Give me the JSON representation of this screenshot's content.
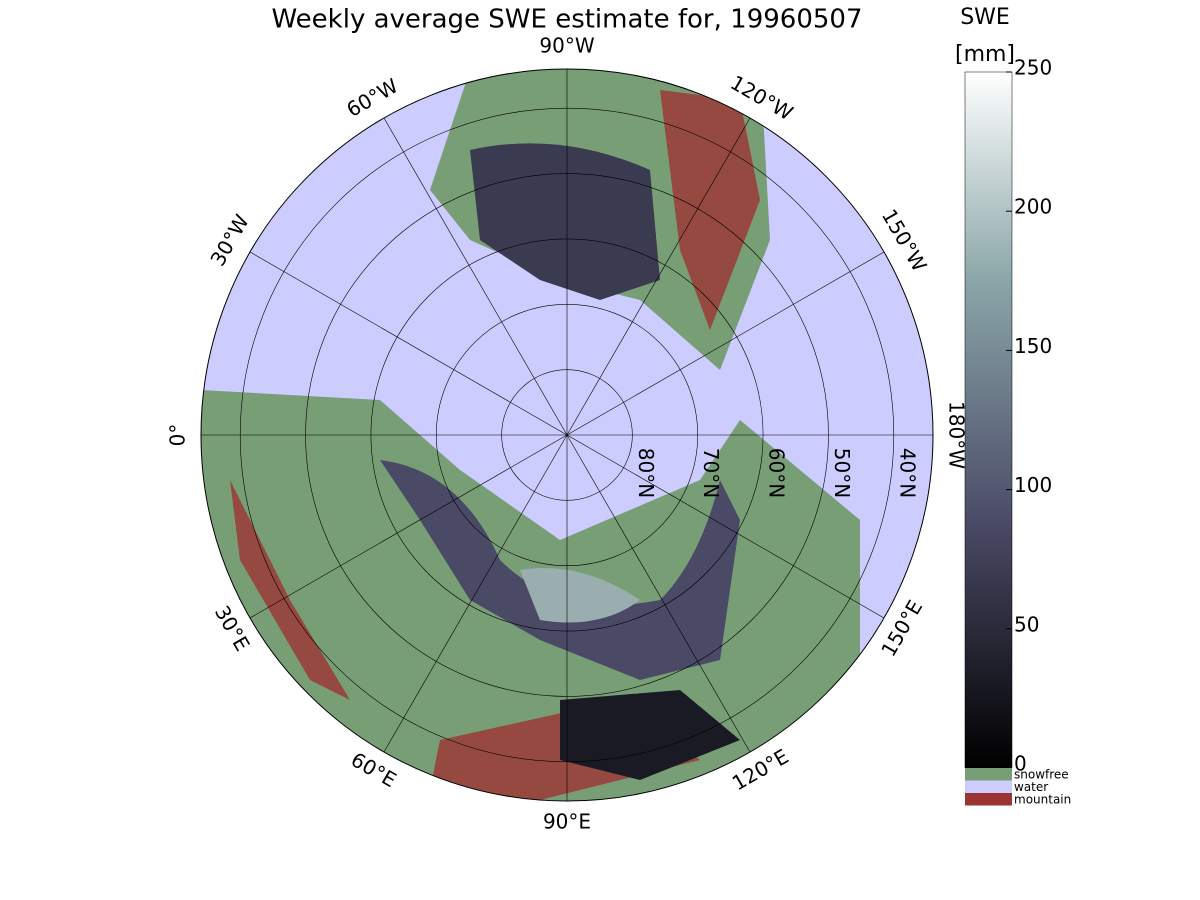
{
  "title": "Weekly average SWE estimate for, 19960507",
  "map": {
    "lat_edge": 34,
    "meridians": [
      {
        "value": -90,
        "label": "90°W"
      },
      {
        "value": -120,
        "label": "120°W"
      },
      {
        "value": -150,
        "label": "150°W"
      },
      {
        "value": 180,
        "label": "180°W"
      },
      {
        "value": 150,
        "label": "150°E"
      },
      {
        "value": 120,
        "label": "120°E"
      },
      {
        "value": 90,
        "label": "90°E"
      },
      {
        "value": 60,
        "label": "60°E"
      },
      {
        "value": 30,
        "label": "30°E"
      },
      {
        "value": 0,
        "label": "0°"
      },
      {
        "value": -30,
        "label": "30°W"
      },
      {
        "value": -60,
        "label": "60°W"
      }
    ],
    "parallels": [
      {
        "value": 80,
        "label": "80°N"
      },
      {
        "value": 70,
        "label": "70°N"
      },
      {
        "value": 60,
        "label": "60°N"
      },
      {
        "value": 50,
        "label": "50°N"
      },
      {
        "value": 40,
        "label": "40°N"
      }
    ]
  },
  "colorbar": {
    "title": "SWE",
    "unit": "[mm]",
    "lim": [
      0,
      250
    ],
    "ticks": [
      0,
      50,
      100,
      150,
      200,
      250
    ]
  },
  "legend": [
    {
      "name": "snowfree",
      "color": "#789e76"
    },
    {
      "name": "water",
      "color": "#ccccff"
    },
    {
      "name": "mountain",
      "color": "#9c3333"
    }
  ]
}
